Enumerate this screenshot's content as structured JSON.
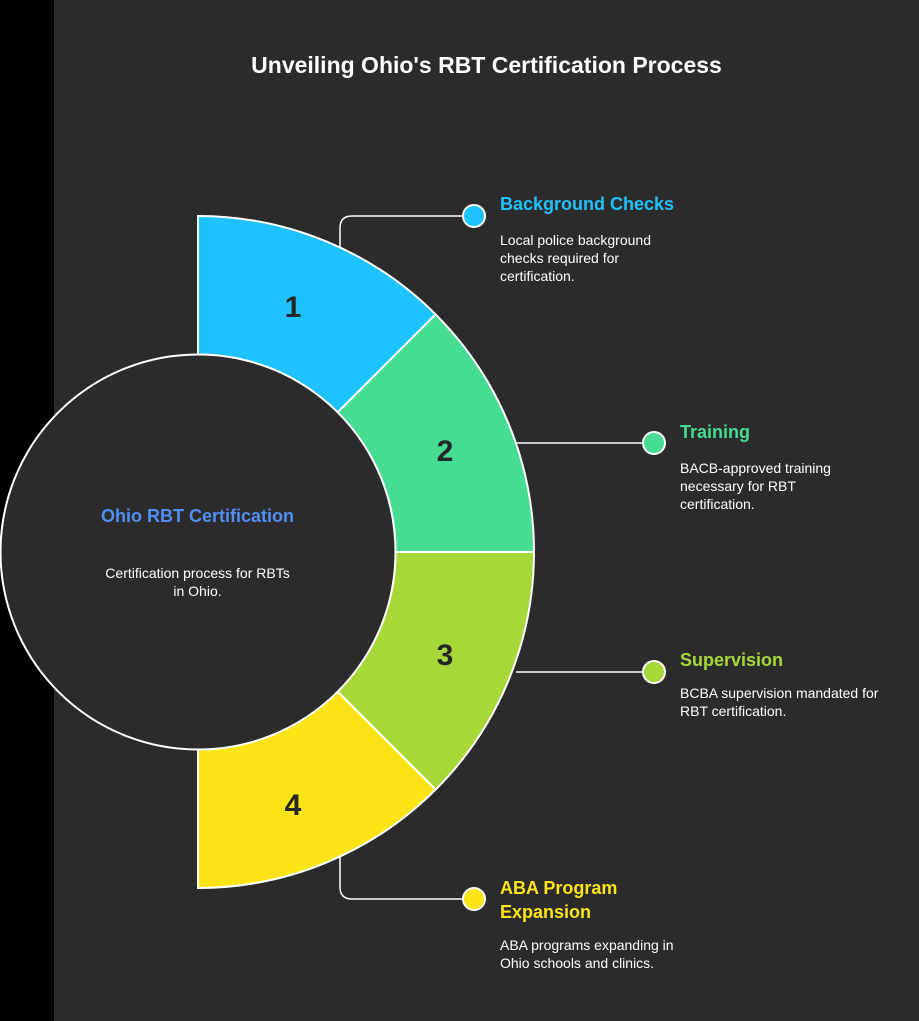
{
  "title": "Unveiling Ohio's RBT Certification Process",
  "center": {
    "title": "Ohio RBT Certification",
    "description": "Certification process for RBTs in Ohio."
  },
  "steps": [
    {
      "number": "1",
      "title": "Background Checks",
      "description": "Local police background checks required for certification.",
      "color": "#1ec2ff"
    },
    {
      "number": "2",
      "title": "Training",
      "description": "BACB-approved training necessary for RBT certification.",
      "color": "#46dd92"
    },
    {
      "number": "3",
      "title": "Supervision",
      "description": "BCBA supervision mandated for RBT certification.",
      "color": "#a6d938"
    },
    {
      "number": "4",
      "title": "ABA Program Expansion",
      "description": "ABA programs expanding in Ohio schools and clinics.",
      "color": "#fce416"
    }
  ]
}
